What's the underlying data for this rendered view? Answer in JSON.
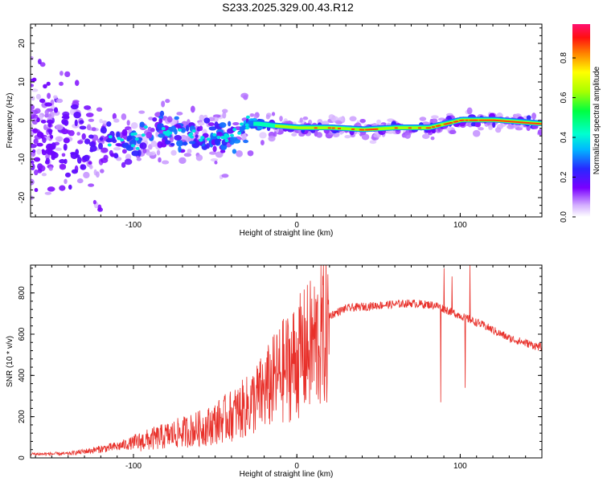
{
  "title": "S233.2025.329.00.43.R12",
  "chart_data": [
    {
      "type": "heatmap",
      "title": "S233.2025.329.00.43.R12",
      "xlabel": "Height of straight line (km)",
      "ylabel": "Frequency (Hz)",
      "xlim": [
        -163,
        150
      ],
      "ylim": [
        -25,
        25
      ],
      "xticks": [
        -100,
        0,
        100
      ],
      "yticks": [
        -20,
        -10,
        0,
        10,
        20
      ],
      "colorbar": {
        "label": "Normalized spectral amplitude",
        "range": [
          0,
          0.97
        ],
        "ticks": [
          0.0,
          0.2,
          0.4,
          0.6,
          0.8
        ]
      },
      "ridge": [
        {
          "x": -163,
          "y": -3,
          "amp": 0.15
        },
        {
          "x": -120,
          "y": -6,
          "amp": 0.2
        },
        {
          "x": -100,
          "y": -5,
          "amp": 0.28
        },
        {
          "x": -80,
          "y": -2,
          "amp": 0.3
        },
        {
          "x": -60,
          "y": -5,
          "amp": 0.3
        },
        {
          "x": -40,
          "y": -4,
          "amp": 0.3
        },
        {
          "x": -30,
          "y": -1,
          "amp": 0.35
        },
        {
          "x": -25,
          "y": -1,
          "amp": 0.45
        },
        {
          "x": -15,
          "y": -1.5,
          "amp": 0.6
        },
        {
          "x": 0,
          "y": -2,
          "amp": 0.8
        },
        {
          "x": 20,
          "y": -2,
          "amp": 0.85
        },
        {
          "x": 40,
          "y": -2.5,
          "amp": 0.88
        },
        {
          "x": 60,
          "y": -2,
          "amp": 0.85
        },
        {
          "x": 80,
          "y": -2,
          "amp": 0.88
        },
        {
          "x": 100,
          "y": 0,
          "amp": 0.9
        },
        {
          "x": 120,
          "y": 0,
          "amp": 0.95
        },
        {
          "x": 150,
          "y": -1,
          "amp": 0.95
        }
      ]
    },
    {
      "type": "line",
      "xlabel": "Height of straight line (km)",
      "ylabel": "SNR (10 * v/v)",
      "xlim": [
        -163,
        150
      ],
      "ylim": [
        0,
        935
      ],
      "xticks": [
        -100,
        0,
        100
      ],
      "yticks": [
        0,
        200,
        400,
        600,
        800
      ],
      "series": [
        {
          "name": "SNR",
          "color": "#e8302a",
          "envelope": [
            {
              "x": -163,
              "y": 20
            },
            {
              "x": -140,
              "y": 22
            },
            {
              "x": -125,
              "y": 40
            },
            {
              "x": -110,
              "y": 60
            },
            {
              "x": -90,
              "y": 100
            },
            {
              "x": -70,
              "y": 140
            },
            {
              "x": -55,
              "y": 170
            },
            {
              "x": -40,
              "y": 230
            },
            {
              "x": -30,
              "y": 280
            },
            {
              "x": -20,
              "y": 360
            },
            {
              "x": -10,
              "y": 460
            },
            {
              "x": 0,
              "y": 540
            },
            {
              "x": 10,
              "y": 620
            },
            {
              "x": 20,
              "y": 690
            },
            {
              "x": 30,
              "y": 725
            },
            {
              "x": 50,
              "y": 740
            },
            {
              "x": 70,
              "y": 750
            },
            {
              "x": 85,
              "y": 740
            },
            {
              "x": 100,
              "y": 690
            },
            {
              "x": 115,
              "y": 640
            },
            {
              "x": 130,
              "y": 580
            },
            {
              "x": 150,
              "y": 535
            }
          ],
          "spikes": [
            {
              "x": 88,
              "y": 270
            },
            {
              "x": 90,
              "y": 920
            },
            {
              "x": 95,
              "y": 880
            },
            {
              "x": 103,
              "y": 340
            },
            {
              "x": 106,
              "y": 935
            }
          ]
        }
      ]
    }
  ]
}
